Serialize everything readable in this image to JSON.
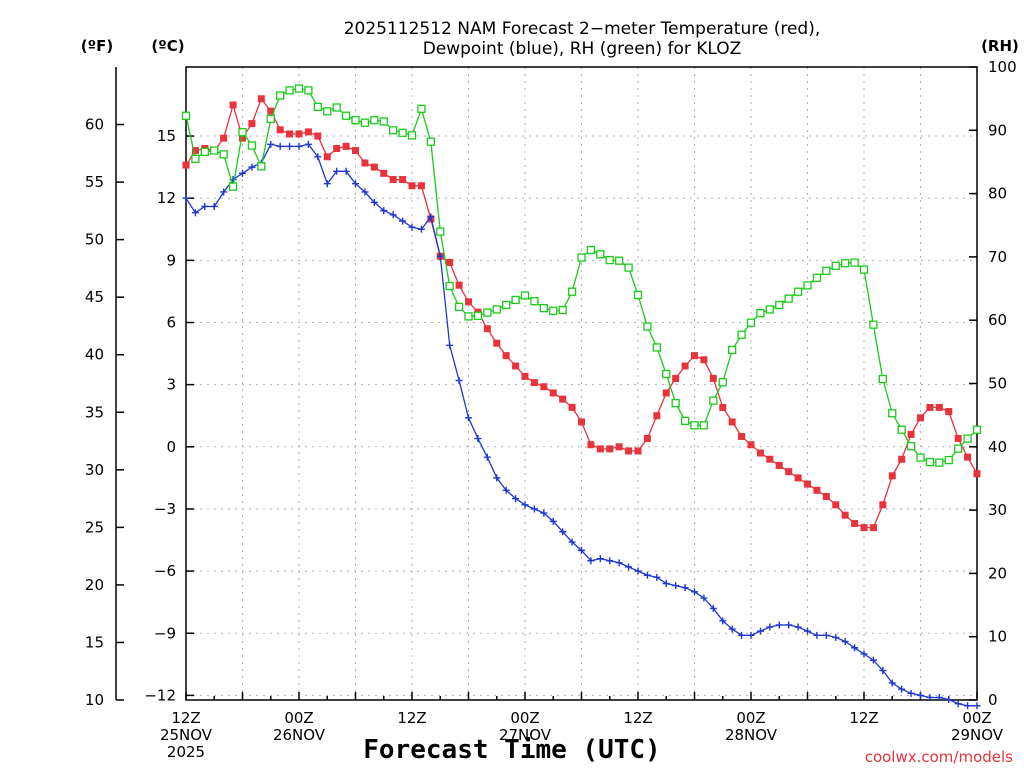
{
  "chart_data": {
    "type": "line",
    "title_line1": "2025112512 NAM Forecast 2−meter Temperature (red),",
    "title_line2": "Dewpoint (blue), RH (green) for KLOZ",
    "unit_left_f": "(ºF)",
    "unit_left_c": "(ºC)",
    "unit_right": "(RH)",
    "xlabel": "Forecast Time (UTC)",
    "credit": "coolwx.com/models",
    "x_range_hours": [
      0,
      84
    ],
    "ylim_c": [
      -12.222,
      18.333
    ],
    "ylim_rh": [
      0,
      100
    ],
    "fahrenheit_ticks": [
      10,
      15,
      20,
      25,
      30,
      35,
      40,
      45,
      50,
      55,
      60
    ],
    "fahrenheit_tick_labels": [
      "10",
      "15",
      "20",
      "25",
      "30",
      "35",
      "40",
      "45",
      "50",
      "55",
      "60"
    ],
    "celsius_ticks": [
      -12,
      -9,
      -6,
      -3,
      0,
      3,
      6,
      9,
      12,
      15
    ],
    "celsius_tick_labels": [
      "−12",
      "−9",
      "−6",
      "−3",
      "0",
      "3",
      "6",
      "9",
      "12",
      "15"
    ],
    "rh_ticks": [
      0,
      10,
      20,
      30,
      40,
      50,
      60,
      70,
      80,
      90,
      100
    ],
    "rh_tick_labels": [
      "0",
      "10",
      "20",
      "30",
      "40",
      "50",
      "60",
      "70",
      "80",
      "90",
      "100"
    ],
    "x_ticks": [
      {
        "hour": 0,
        "lines": [
          "12Z",
          "25NOV",
          "2025"
        ]
      },
      {
        "hour": 12,
        "lines": [
          "00Z",
          "26NOV"
        ]
      },
      {
        "hour": 24,
        "lines": [
          "12Z"
        ]
      },
      {
        "hour": 36,
        "lines": [
          "00Z",
          "27NOV"
        ]
      },
      {
        "hour": 48,
        "lines": [
          "12Z"
        ]
      },
      {
        "hour": 60,
        "lines": [
          "00Z",
          "28NOV"
        ]
      },
      {
        "hour": 72,
        "lines": [
          "12Z"
        ]
      },
      {
        "hour": 84,
        "lines": [
          "00Z",
          "29NOV"
        ]
      }
    ],
    "series": [
      {
        "name": "Temperature",
        "unit": "C",
        "color": "#e8323c",
        "marker": "filled-square",
        "x": [
          0,
          1,
          2,
          3,
          4,
          5,
          6,
          7,
          8,
          9,
          10,
          11,
          12,
          13,
          14,
          15,
          16,
          17,
          18,
          19,
          20,
          21,
          22,
          23,
          24,
          25,
          26,
          27,
          28,
          29,
          30,
          31,
          32,
          33,
          34,
          35,
          36,
          37,
          38,
          39,
          40,
          41,
          42,
          43,
          44,
          45,
          46,
          47,
          48,
          49,
          50,
          51,
          52,
          53,
          54,
          55,
          56,
          57,
          58,
          59,
          60,
          61,
          62,
          63,
          64,
          65,
          66,
          67,
          68,
          69,
          70,
          71,
          72,
          73,
          74,
          75,
          76,
          77,
          78,
          79,
          80,
          81,
          82,
          83,
          84
        ],
        "values": [
          13.6,
          14.3,
          14.4,
          14.3,
          14.9,
          16.5,
          14.9,
          15.6,
          16.8,
          16.2,
          15.3,
          15.1,
          15.1,
          15.2,
          15.0,
          14.0,
          14.4,
          14.5,
          14.3,
          13.7,
          13.5,
          13.2,
          12.9,
          12.9,
          12.6,
          12.6,
          11.0,
          9.2,
          8.9,
          7.8,
          7.0,
          6.5,
          5.7,
          5.0,
          4.4,
          3.9,
          3.4,
          3.1,
          2.9,
          2.6,
          2.3,
          1.9,
          1.2,
          0.1,
          -0.1,
          -0.1,
          0.0,
          -0.2,
          -0.2,
          0.4,
          1.5,
          2.6,
          3.3,
          3.9,
          4.4,
          4.2,
          3.3,
          1.9,
          1.2,
          0.5,
          0.1,
          -0.3,
          -0.6,
          -0.9,
          -1.2,
          -1.5,
          -1.8,
          -2.1,
          -2.4,
          -2.8,
          -3.3,
          -3.7,
          -3.9,
          -3.9,
          -2.8,
          -1.4,
          -0.6,
          0.6,
          1.4,
          1.9,
          1.9,
          1.7,
          0.4,
          -0.5,
          -1.3
        ]
      },
      {
        "name": "Dewpoint",
        "unit": "C",
        "color": "#1e37d6",
        "marker": "plus",
        "x": [
          0,
          1,
          2,
          3,
          4,
          5,
          6,
          7,
          8,
          9,
          10,
          11,
          12,
          13,
          14,
          15,
          16,
          17,
          18,
          19,
          20,
          21,
          22,
          23,
          24,
          25,
          26,
          27,
          28,
          29,
          30,
          31,
          32,
          33,
          34,
          35,
          36,
          37,
          38,
          39,
          40,
          41,
          42,
          43,
          44,
          45,
          46,
          47,
          48,
          49,
          50,
          51,
          52,
          53,
          54,
          55,
          56,
          57,
          58,
          59,
          60,
          61,
          62,
          63,
          64,
          65,
          66,
          67,
          68,
          69,
          70,
          71,
          72,
          73,
          74,
          75,
          76,
          77,
          78,
          79,
          80,
          81,
          82,
          83,
          84
        ],
        "values": [
          12.0,
          11.3,
          11.6,
          11.6,
          12.3,
          12.9,
          13.2,
          13.5,
          13.7,
          14.6,
          14.5,
          14.5,
          14.5,
          14.6,
          14.0,
          12.7,
          13.3,
          13.3,
          12.7,
          12.3,
          11.8,
          11.4,
          11.2,
          10.9,
          10.6,
          10.5,
          11.1,
          9.2,
          4.9,
          3.2,
          1.4,
          0.4,
          -0.5,
          -1.5,
          -2.1,
          -2.5,
          -2.8,
          -3.0,
          -3.2,
          -3.6,
          -4.1,
          -4.6,
          -5.0,
          -5.5,
          -5.4,
          -5.5,
          -5.6,
          -5.8,
          -6.0,
          -6.2,
          -6.3,
          -6.6,
          -6.7,
          -6.8,
          -7.0,
          -7.3,
          -7.8,
          -8.4,
          -8.8,
          -9.1,
          -9.1,
          -8.9,
          -8.7,
          -8.6,
          -8.6,
          -8.7,
          -8.9,
          -9.1,
          -9.1,
          -9.2,
          -9.4,
          -9.7,
          -10.0,
          -10.3,
          -10.8,
          -11.4,
          -11.7,
          -11.9,
          -12.0,
          -12.1,
          -12.1,
          -12.2,
          -12.4,
          -12.5,
          -12.5
        ]
      },
      {
        "name": "RH",
        "unit": "%",
        "color": "#19cc19",
        "marker": "open-square",
        "x": [
          0,
          1,
          2,
          3,
          4,
          5,
          6,
          7,
          8,
          9,
          10,
          11,
          12,
          13,
          14,
          15,
          16,
          17,
          18,
          19,
          20,
          21,
          22,
          23,
          24,
          25,
          26,
          27,
          28,
          29,
          30,
          31,
          32,
          33,
          34,
          35,
          36,
          37,
          38,
          39,
          40,
          41,
          42,
          43,
          44,
          45,
          46,
          47,
          48,
          49,
          50,
          51,
          52,
          53,
          54,
          55,
          56,
          57,
          58,
          59,
          60,
          61,
          62,
          63,
          64,
          65,
          66,
          67,
          68,
          69,
          70,
          71,
          72,
          73,
          74,
          75,
          76,
          77,
          78,
          79,
          80,
          81,
          82,
          83,
          84
        ],
        "values": [
          92.3,
          85.5,
          86.6,
          86.8,
          86.2,
          81.1,
          89.7,
          87.6,
          84.3,
          91.8,
          95.5,
          96.3,
          96.6,
          96.3,
          93.7,
          93.0,
          93.6,
          92.3,
          91.6,
          91.2,
          91.6,
          91.4,
          90.0,
          89.6,
          89.2,
          93.4,
          88.2,
          74.0,
          65.4,
          62.1,
          60.6,
          60.7,
          61.2,
          61.7,
          62.4,
          63.2,
          63.9,
          63.0,
          61.9,
          61.5,
          61.6,
          64.5,
          69.9,
          71.1,
          70.4,
          69.5,
          69.4,
          68.3,
          64.0,
          59.0,
          55.7,
          51.5,
          46.9,
          44.1,
          43.4,
          43.4,
          47.3,
          50.2,
          55.3,
          57.7,
          59.6,
          61.1,
          61.7,
          62.4,
          63.4,
          64.5,
          65.5,
          66.7,
          67.8,
          68.6,
          69.0,
          69.1,
          68.0,
          59.3,
          50.7,
          45.3,
          42.7,
          40.1,
          38.3,
          37.6,
          37.5,
          37.9,
          39.7,
          41.3,
          42.7
        ]
      }
    ]
  }
}
